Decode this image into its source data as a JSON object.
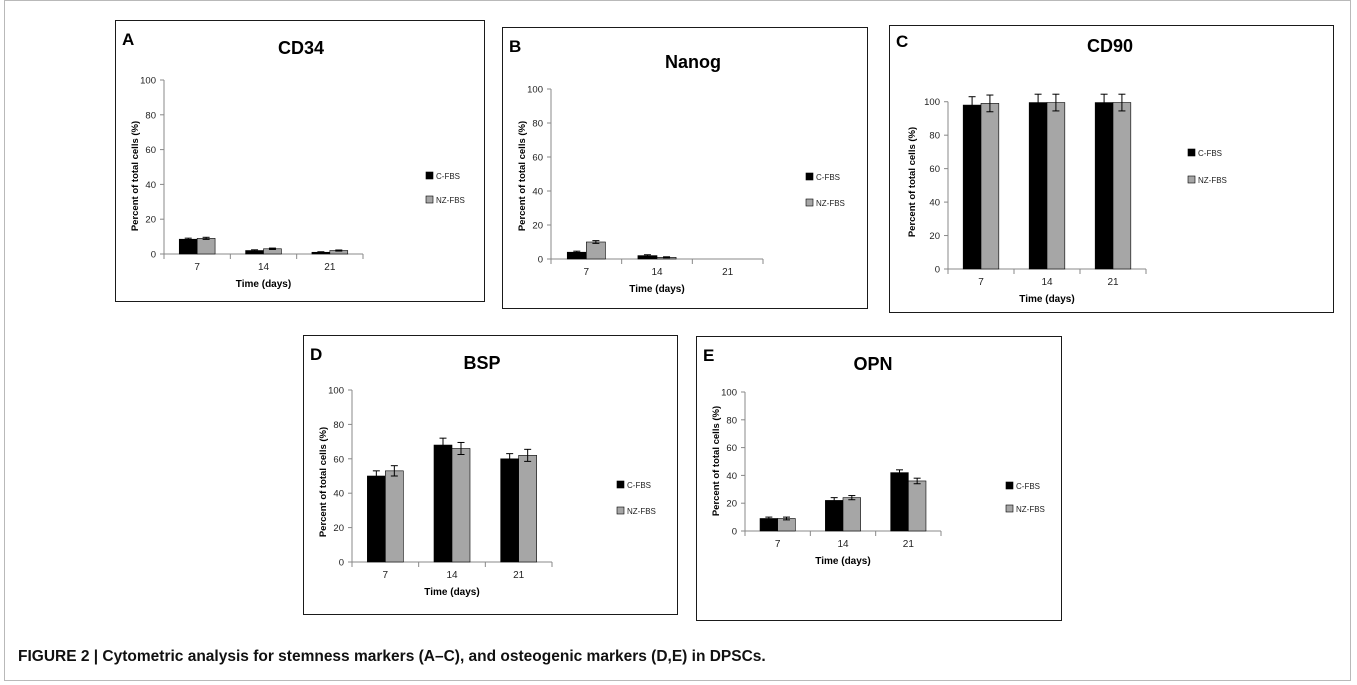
{
  "figure": {
    "caption": "FIGURE 2 | Cytometric analysis for stemness markers (A–C), and osteogenic markers (D,E) in DPSCs."
  },
  "colors": {
    "c_fbs": "#000000",
    "nz_fbs": "#a6a6a6"
  },
  "chart_data": [
    {
      "panel": "A",
      "type": "bar",
      "title": "CD34",
      "xlabel": "Time (days)",
      "ylabel": "Percent of total cells (%)",
      "categories": [
        "7",
        "14",
        "21"
      ],
      "ylim": [
        0,
        100
      ],
      "yticks": [
        0,
        20,
        40,
        60,
        80,
        100
      ],
      "legend_position": "right",
      "series": [
        {
          "name": "C-FBS",
          "values": [
            8.5,
            2,
            1
          ],
          "errors": [
            0.6,
            0.4,
            0.3
          ]
        },
        {
          "name": "NZ-FBS",
          "values": [
            9,
            3,
            2
          ],
          "errors": [
            0.6,
            0.4,
            0.3
          ]
        }
      ]
    },
    {
      "panel": "B",
      "type": "bar",
      "title": "Nanog",
      "xlabel": "Time (days)",
      "ylabel": "Percent of total cells (%)",
      "categories": [
        "7",
        "14",
        "21"
      ],
      "ylim": [
        0,
        100
      ],
      "yticks": [
        0,
        20,
        40,
        60,
        80,
        100
      ],
      "legend_position": "right",
      "series": [
        {
          "name": "C-FBS",
          "values": [
            4,
            2,
            0
          ],
          "errors": [
            0.6,
            0.5,
            0
          ]
        },
        {
          "name": "NZ-FBS",
          "values": [
            10,
            1,
            0
          ],
          "errors": [
            0.8,
            0.3,
            0
          ]
        }
      ]
    },
    {
      "panel": "C",
      "type": "bar",
      "title": "CD90",
      "xlabel": "Time (days)",
      "ylabel": "Percent of total cells (%)",
      "categories": [
        "7",
        "14",
        "21"
      ],
      "ylim": [
        0,
        110
      ],
      "yticks": [
        0,
        20,
        40,
        60,
        80,
        100
      ],
      "legend_position": "right",
      "series": [
        {
          "name": "C-FBS",
          "values": [
            98,
            99.5,
            99.5
          ],
          "errors": [
            5,
            5,
            5
          ]
        },
        {
          "name": "NZ-FBS",
          "values": [
            99,
            99.5,
            99.5
          ],
          "errors": [
            5,
            5,
            5
          ]
        }
      ]
    },
    {
      "panel": "D",
      "type": "bar",
      "title": "BSP",
      "xlabel": "Time (days)",
      "ylabel": "Percent of total cells (%)",
      "categories": [
        "7",
        "14",
        "21"
      ],
      "ylim": [
        0,
        100
      ],
      "yticks": [
        0,
        20,
        40,
        60,
        80,
        100
      ],
      "legend_position": "right",
      "series": [
        {
          "name": "C-FBS",
          "values": [
            50,
            68,
            60
          ],
          "errors": [
            3,
            4,
            3
          ]
        },
        {
          "name": "NZ-FBS",
          "values": [
            53,
            66,
            62
          ],
          "errors": [
            3,
            3.5,
            3.5
          ]
        }
      ]
    },
    {
      "panel": "E",
      "type": "bar",
      "title": "OPN",
      "xlabel": "Time (days)",
      "ylabel": "Percent of total cells (%)",
      "categories": [
        "7",
        "14",
        "21"
      ],
      "ylim": [
        0,
        100
      ],
      "yticks": [
        0,
        20,
        40,
        60,
        80,
        100
      ],
      "legend_position": "right",
      "series": [
        {
          "name": "C-FBS",
          "values": [
            9,
            22,
            42
          ],
          "errors": [
            1,
            2,
            2
          ]
        },
        {
          "name": "NZ-FBS",
          "values": [
            9,
            24,
            36
          ],
          "errors": [
            1,
            1.5,
            2
          ]
        }
      ]
    }
  ]
}
